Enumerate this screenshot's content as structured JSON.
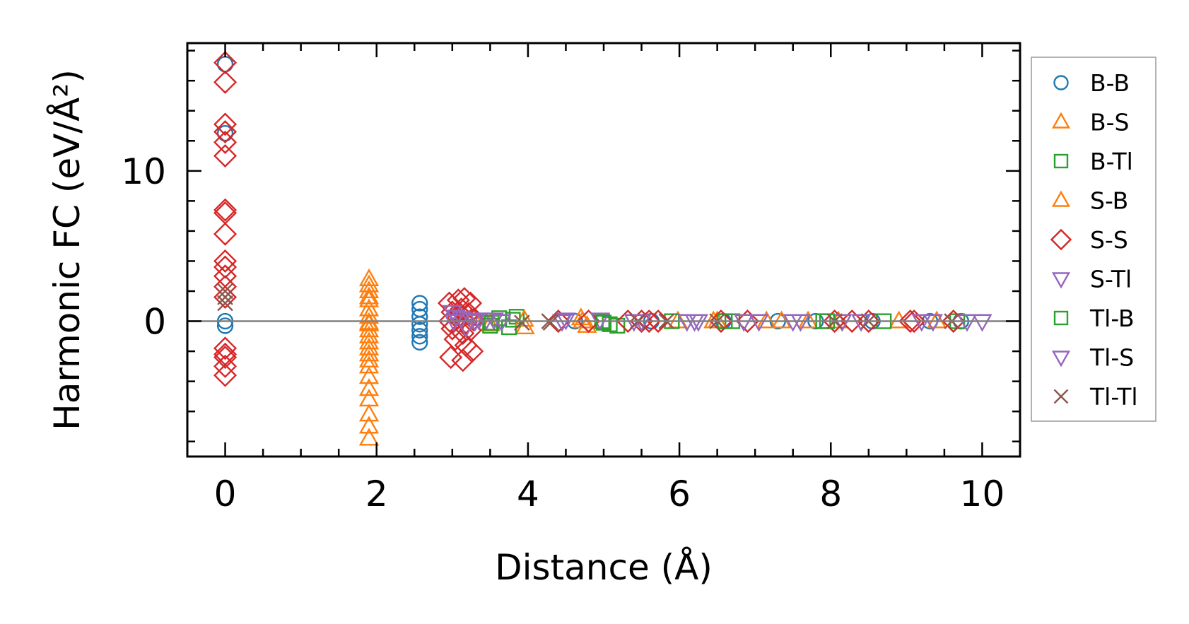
{
  "chart_data": {
    "type": "scatter",
    "title": "",
    "xlabel": "Distance (Å)",
    "ylabel": "Harmonic FC (eV/Å²)",
    "xlim": [
      -0.5,
      10.5
    ],
    "ylim": [
      -9,
      18.5
    ],
    "x_ticks": [
      0,
      2,
      4,
      6,
      8,
      10
    ],
    "x_tick_labels": [
      "0",
      "2",
      "4",
      "6",
      "8",
      "10"
    ],
    "y_ticks": [
      0,
      10
    ],
    "y_tick_labels": [
      "0",
      "10"
    ],
    "zero_line": 0,
    "grid": false,
    "legend_position": "outside-right",
    "series": [
      {
        "name": "B-B",
        "marker": "circle",
        "color": "#1f77b4",
        "points": [
          [
            0,
            17.1
          ],
          [
            0,
            12.5
          ],
          [
            0,
            0
          ],
          [
            0,
            -0.3
          ],
          [
            2.57,
            1.2
          ],
          [
            2.57,
            0.8
          ],
          [
            2.57,
            0.3
          ],
          [
            2.57,
            -0.2
          ],
          [
            2.57,
            -0.6
          ],
          [
            2.57,
            -1.0
          ],
          [
            2.57,
            -1.4
          ],
          [
            4.62,
            0
          ],
          [
            5.63,
            0
          ],
          [
            6.58,
            0
          ],
          [
            7.3,
            0
          ],
          [
            7.8,
            0
          ],
          [
            8.55,
            0
          ],
          [
            9.31,
            0
          ],
          [
            9.72,
            0
          ]
        ]
      },
      {
        "name": "B-S",
        "marker": "triangle-up",
        "color": "#ff7f0e",
        "points": [
          [
            1.9,
            2.8
          ],
          [
            1.9,
            2.4
          ],
          [
            1.9,
            2.0
          ],
          [
            1.9,
            1.6
          ],
          [
            1.9,
            0.8
          ],
          [
            1.9,
            0.3
          ],
          [
            1.9,
            -0.2
          ],
          [
            1.9,
            -0.6
          ],
          [
            1.9,
            -1.0
          ],
          [
            1.9,
            -1.4
          ],
          [
            1.9,
            -1.8
          ],
          [
            1.9,
            -2.2
          ],
          [
            1.9,
            -2.6
          ],
          [
            1.9,
            -3.0
          ],
          [
            1.9,
            -3.7
          ],
          [
            1.9,
            -4.5
          ],
          [
            1.9,
            -5.2
          ],
          [
            1.9,
            -6.2
          ],
          [
            1.9,
            -7.0
          ],
          [
            1.9,
            -7.8
          ],
          [
            3.28,
            0.2
          ],
          [
            3.5,
            -0.2
          ],
          [
            3.96,
            -0.4
          ],
          [
            4.7,
            0.2
          ],
          [
            4.78,
            -0.3
          ],
          [
            5.98,
            0
          ],
          [
            6.45,
            0
          ],
          [
            7.15,
            0
          ],
          [
            7.35,
            0
          ],
          [
            7.7,
            0
          ],
          [
            8.9,
            0
          ],
          [
            9.4,
            0
          ]
        ]
      },
      {
        "name": "B-Tl",
        "marker": "square",
        "color": "#2ca02c",
        "points": [
          [
            3.5,
            -0.3
          ],
          [
            3.62,
            0.2
          ],
          [
            3.75,
            -0.4
          ],
          [
            3.85,
            0.3
          ],
          [
            4.98,
            0
          ],
          [
            5.08,
            -0.2
          ],
          [
            5.18,
            -0.3
          ],
          [
            5.9,
            0
          ],
          [
            6.7,
            0
          ],
          [
            7.9,
            0
          ],
          [
            8.7,
            0
          ],
          [
            9.67,
            0
          ]
        ]
      },
      {
        "name": "S-B",
        "marker": "triangle-up",
        "color": "#ff7f0e",
        "points": [
          [
            1.9,
            1.4
          ],
          [
            1.9,
            -0.1
          ],
          [
            3.95,
            0.1
          ],
          [
            4.72,
            0
          ],
          [
            6.5,
            0
          ],
          [
            8.1,
            0
          ]
        ]
      },
      {
        "name": "S-S",
        "marker": "diamond",
        "color": "#d62728",
        "points": [
          [
            0,
            17.2
          ],
          [
            0,
            15.9
          ],
          [
            0,
            13.1
          ],
          [
            0,
            12.6
          ],
          [
            0,
            11.9
          ],
          [
            0,
            11.0
          ],
          [
            0,
            7.4
          ],
          [
            0,
            7.2
          ],
          [
            0,
            5.8
          ],
          [
            0,
            4.0
          ],
          [
            0,
            3.6
          ],
          [
            0,
            3.0
          ],
          [
            0,
            2.3
          ],
          [
            0,
            1.6
          ],
          [
            0,
            -1.8
          ],
          [
            0,
            -2.2
          ],
          [
            0,
            -2.4
          ],
          [
            0,
            -3.0
          ],
          [
            0,
            -3.6
          ],
          [
            2.96,
            1.2
          ],
          [
            3.08,
            1.4
          ],
          [
            3.16,
            1.5
          ],
          [
            3.24,
            1.2
          ],
          [
            3.0,
            0.6
          ],
          [
            3.12,
            0.8
          ],
          [
            3.22,
            0.5
          ],
          [
            2.97,
            0.0
          ],
          [
            3.07,
            0.2
          ],
          [
            3.18,
            -0.1
          ],
          [
            3.28,
            0.1
          ],
          [
            3.0,
            -0.5
          ],
          [
            3.14,
            -0.8
          ],
          [
            3.24,
            -0.6
          ],
          [
            3.04,
            -1.2
          ],
          [
            3.18,
            -1.6
          ],
          [
            3.26,
            -2.0
          ],
          [
            2.98,
            -2.4
          ],
          [
            3.14,
            -2.6
          ],
          [
            4.4,
            0
          ],
          [
            4.8,
            0
          ],
          [
            5.32,
            0
          ],
          [
            5.5,
            0
          ],
          [
            5.6,
            0
          ],
          [
            5.72,
            0
          ],
          [
            6.55,
            0
          ],
          [
            6.9,
            0
          ],
          [
            8.05,
            0
          ],
          [
            8.28,
            0
          ],
          [
            8.5,
            0
          ],
          [
            9.05,
            0
          ],
          [
            9.1,
            0
          ],
          [
            9.62,
            0
          ]
        ]
      },
      {
        "name": "S-Tl",
        "marker": "triangle-down",
        "color": "#9467bd",
        "points": [
          [
            3.0,
            0.6
          ],
          [
            3.05,
            0.3
          ],
          [
            3.12,
            0.2
          ],
          [
            3.25,
            0.1
          ],
          [
            3.35,
            0.1
          ],
          [
            3.45,
            0.1
          ],
          [
            3.55,
            0.1
          ],
          [
            4.5,
            0.1
          ],
          [
            4.95,
            0.1
          ],
          [
            5.5,
            0
          ],
          [
            6.1,
            0
          ],
          [
            6.25,
            0
          ],
          [
            6.85,
            0
          ],
          [
            7.05,
            0
          ],
          [
            7.6,
            0
          ],
          [
            8.15,
            0
          ],
          [
            8.4,
            0
          ],
          [
            9.35,
            0
          ],
          [
            9.8,
            0
          ],
          [
            10.0,
            0
          ]
        ]
      },
      {
        "name": "Tl-B",
        "marker": "square",
        "color": "#2ca02c",
        "points": [
          [
            3.52,
            -0.1
          ],
          [
            3.8,
            0.1
          ],
          [
            5.0,
            -0.1
          ],
          [
            6.6,
            0
          ],
          [
            7.95,
            0
          ]
        ]
      },
      {
        "name": "Tl-S",
        "marker": "triangle-down",
        "color": "#9467bd",
        "points": [
          [
            3.02,
            0.0
          ],
          [
            3.18,
            -0.4
          ],
          [
            3.3,
            0.0
          ],
          [
            3.65,
            0.0
          ],
          [
            4.45,
            0.0
          ],
          [
            5.4,
            0
          ],
          [
            6.2,
            0
          ],
          [
            7.5,
            0
          ],
          [
            9.2,
            0
          ]
        ]
      },
      {
        "name": "Tl-Tl",
        "marker": "cross",
        "color": "#8c564b",
        "points": [
          [
            0,
            2.0
          ],
          [
            0,
            1.6
          ],
          [
            0,
            1.2
          ],
          [
            3.92,
            -0.1
          ],
          [
            4.28,
            0
          ],
          [
            4.3,
            -0.1
          ],
          [
            5.45,
            0
          ],
          [
            5.83,
            0
          ],
          [
            6.5,
            0
          ],
          [
            8.05,
            0
          ],
          [
            8.5,
            0
          ],
          [
            9.6,
            0
          ]
        ]
      }
    ]
  }
}
